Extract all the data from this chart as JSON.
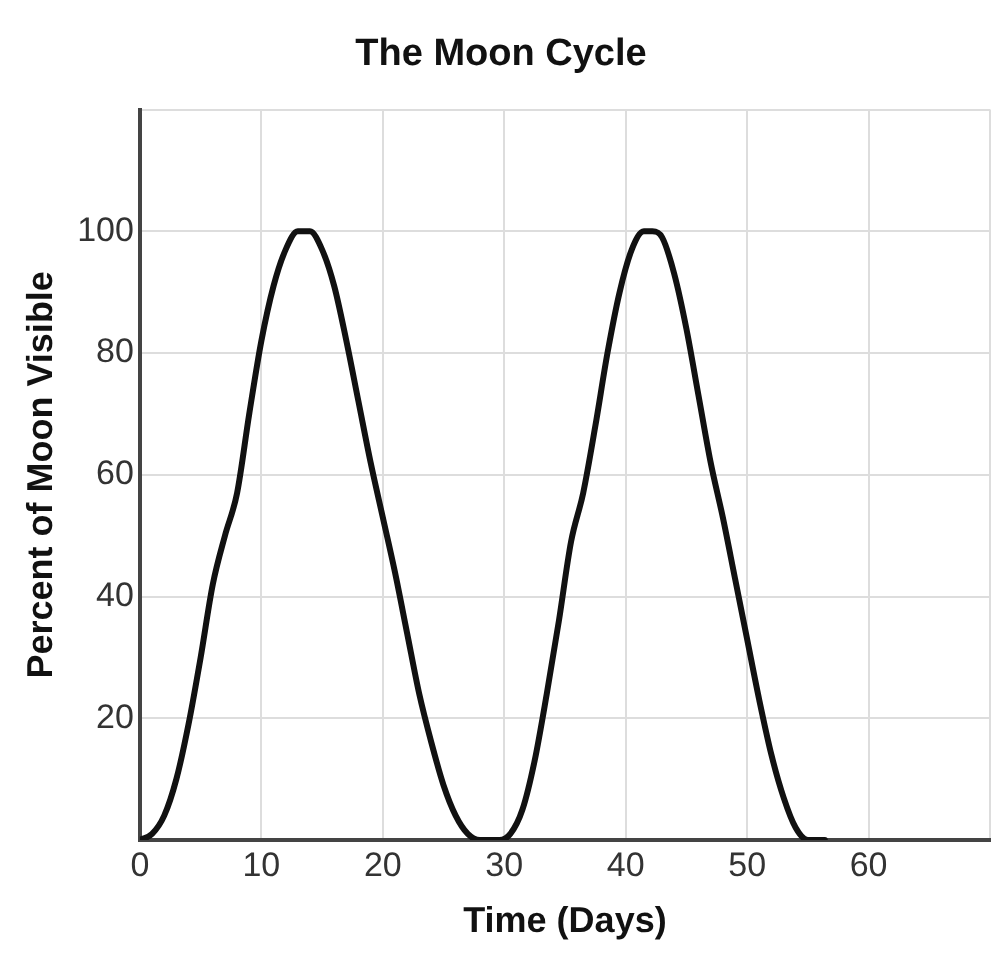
{
  "chart_data": {
    "type": "line",
    "title": "The Moon Cycle",
    "xlabel": "Time (Days)",
    "ylabel": "Percent of Moon Visible",
    "x": [
      0,
      1,
      2,
      3,
      4,
      5,
      6,
      7,
      8,
      9,
      10,
      11,
      12,
      13,
      14,
      15,
      16,
      17,
      18,
      19,
      20,
      21,
      22,
      23,
      24,
      25,
      26,
      27,
      28,
      29,
      29.6,
      30.5,
      31.5,
      32.5,
      33.5,
      34.5,
      35.5,
      36.5,
      37.5,
      38.5,
      39.5,
      40.5,
      41.5,
      42.2,
      43,
      44,
      45,
      46,
      47,
      48,
      49,
      50,
      51,
      52,
      53,
      54,
      55,
      56,
      56.4
    ],
    "series": [
      {
        "color": "#111111",
        "values": [
          0,
          1,
          4,
          10,
          19,
          30,
          42,
          50,
          57,
          70,
          82,
          91,
          97,
          100,
          100,
          97,
          91,
          82,
          72,
          62,
          53,
          44,
          34,
          24,
          16,
          9,
          4,
          1,
          0,
          0,
          0,
          1,
          5,
          13,
          24,
          36,
          49,
          57,
          68,
          80,
          90,
          97,
          100,
          100,
          99,
          93,
          84,
          73,
          62,
          53,
          43,
          33,
          23,
          14,
          7,
          2,
          0,
          0,
          0
        ]
      }
    ],
    "xlim": [
      0,
      70
    ],
    "ylim": [
      0,
      120
    ],
    "xticks": [
      0,
      10,
      20,
      30,
      40,
      50,
      60,
      {
        "value": 70,
        "label": null
      }
    ],
    "yticks": [
      {
        "value": 0,
        "label": null
      },
      20,
      40,
      60,
      80,
      100,
      {
        "value": 120,
        "label": null
      }
    ],
    "grid": true,
    "legend": false,
    "marker": "none",
    "line_style": "solid"
  }
}
